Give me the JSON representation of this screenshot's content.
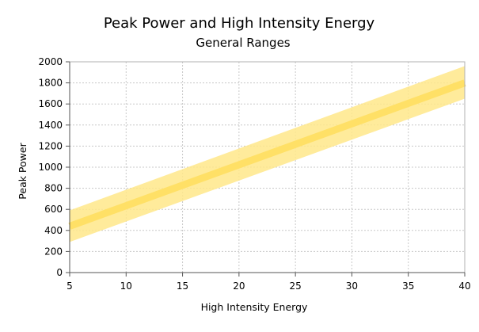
{
  "chart_data": {
    "type": "line",
    "title": "Peak Power and High Intensity Energy",
    "subtitle": "General Ranges",
    "xlabel": "High Intensity Energy",
    "ylabel": "Peak Power",
    "xlim": [
      5,
      40
    ],
    "ylim": [
      0,
      2000
    ],
    "x_ticks": [
      5,
      10,
      15,
      20,
      25,
      30,
      35,
      40
    ],
    "y_ticks": [
      0,
      200,
      400,
      600,
      800,
      1000,
      1200,
      1400,
      1600,
      1800,
      2000
    ],
    "grid": true,
    "legend": "none",
    "colors": {
      "line": "#ffe066",
      "band": "#ffe88a"
    },
    "series": [
      {
        "kind": "line",
        "x": [
          5,
          40
        ],
        "y": [
          440,
          1800
        ]
      },
      {
        "kind": "band",
        "x": [
          5,
          40
        ],
        "y_low": [
          290,
          1650
        ],
        "y_high": [
          590,
          1960
        ]
      }
    ]
  }
}
